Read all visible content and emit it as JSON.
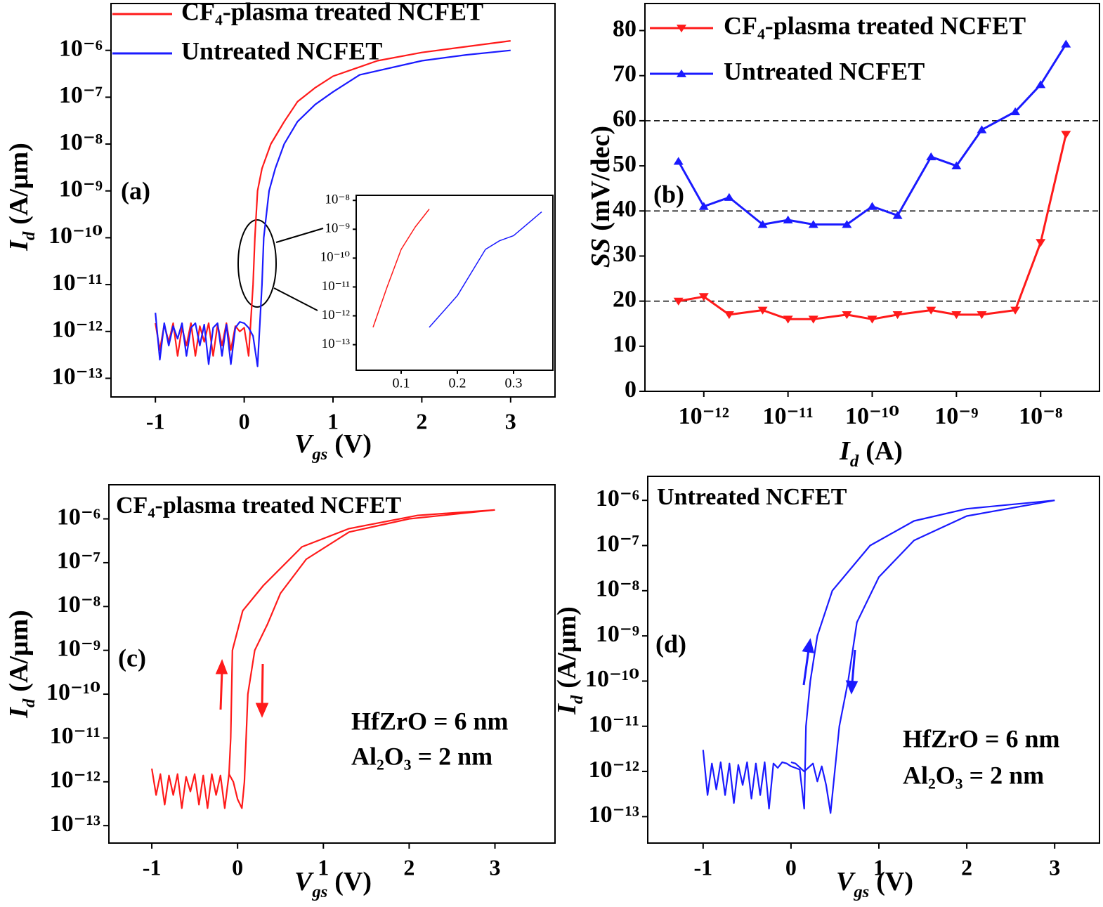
{
  "chart_data": [
    {
      "type": "line",
      "panel_label": "(a)",
      "yscale": "log",
      "legend": true,
      "xlabel": {
        "symbol": "V",
        "subscript": "gs",
        "unit": "(V)"
      },
      "ylabel": {
        "symbol": "I",
        "subscript": "d",
        "unit": "(A/μm)"
      },
      "xlim": [
        -1.5,
        3.5
      ],
      "xticks": [
        -1,
        0,
        1,
        2,
        3
      ],
      "ylim": [
        4e-14,
        1e-05
      ],
      "yticks": [
        {
          "value": 1e-13,
          "label": "10⁻¹³"
        },
        {
          "value": 1e-12,
          "label": "10⁻¹²"
        },
        {
          "value": 1e-11,
          "label": "10⁻¹¹"
        },
        {
          "value": 1e-10,
          "label": "10⁻¹⁰"
        },
        {
          "value": 1e-09,
          "label": "10⁻⁹"
        },
        {
          "value": 1e-08,
          "label": "10⁻⁸"
        },
        {
          "value": 1e-07,
          "label": "10⁻⁷"
        },
        {
          "value": 1e-06,
          "label": "10⁻⁶"
        }
      ],
      "series": [
        {
          "name": "CF₄-plasma treated NCFET",
          "color": "#ff1a1a",
          "x": [
            -1,
            -0.95,
            -0.9,
            -0.85,
            -0.8,
            -0.75,
            -0.7,
            -0.65,
            -0.6,
            -0.55,
            -0.5,
            -0.45,
            -0.4,
            -0.35,
            -0.3,
            -0.25,
            -0.2,
            -0.15,
            -0.1,
            -0.05,
            0,
            0.05,
            0.1,
            0.12,
            0.15,
            0.2,
            0.3,
            0.45,
            0.6,
            0.8,
            1,
            1.5,
            2,
            2.5,
            3
          ],
          "values": [
            1.5e-12,
            4e-13,
            1.4e-12,
            6e-13,
            1.5e-12,
            3e-13,
            1.2e-12,
            5e-13,
            1.5e-12,
            3e-13,
            1.3e-12,
            6e-13,
            1.5e-12,
            3e-13,
            1.4e-12,
            5e-13,
            1.5e-12,
            4e-13,
            1.3e-12,
            1e-12,
            1.2e-12,
            3e-13,
            1e-11,
            1e-10,
            1e-09,
            3e-09,
            1e-08,
            3e-08,
            8e-08,
            1.6e-07,
            2.8e-07,
            6e-07,
            9e-07,
            1.2e-06,
            1.6e-06
          ]
        },
        {
          "name": "Untreated NCFET",
          "color": "#1a1aff",
          "x": [
            -1,
            -0.95,
            -0.9,
            -0.85,
            -0.8,
            -0.75,
            -0.7,
            -0.65,
            -0.6,
            -0.55,
            -0.5,
            -0.45,
            -0.4,
            -0.35,
            -0.3,
            -0.25,
            -0.2,
            -0.15,
            -0.1,
            -0.05,
            0,
            0.05,
            0.1,
            0.15,
            0.2,
            0.22,
            0.28,
            0.35,
            0.45,
            0.6,
            0.8,
            1,
            1.3,
            2,
            2.5,
            3
          ],
          "values": [
            2.5e-12,
            2.5e-13,
            1.5e-12,
            5e-13,
            1.3e-12,
            7e-13,
            1.5e-12,
            3e-13,
            1.2e-12,
            1.5e-12,
            5e-13,
            1.4e-12,
            2e-13,
            1.2e-12,
            1.5e-12,
            3e-13,
            1.4e-12,
            2e-13,
            1.2e-12,
            1.6e-12,
            1.5e-12,
            1.2e-12,
            8e-13,
            1.8e-13,
            1e-11,
            1e-10,
            1e-09,
            3e-09,
            1e-08,
            3e-08,
            7e-08,
            1.3e-07,
            3e-07,
            6e-07,
            8e-07,
            1e-06
          ]
        }
      ]
    },
    {
      "type": "line",
      "yscale": "log",
      "xlim": [
        0.02,
        0.37
      ],
      "xticks": [
        0.1,
        0.2,
        0.3
      ],
      "ylim": [
        1.3e-14,
        1.5e-08
      ],
      "yticks": [
        {
          "value": 1e-13,
          "label": "10⁻¹³"
        },
        {
          "value": 1e-12,
          "label": "10⁻¹²"
        },
        {
          "value": 1e-11,
          "label": "10⁻¹¹"
        },
        {
          "value": 1e-10,
          "label": "10⁻¹⁰"
        },
        {
          "value": 1e-09,
          "label": "10⁻⁹"
        },
        {
          "value": 1e-08,
          "label": "10⁻⁸"
        }
      ],
      "series": [
        {
          "color": "#ff1a1a",
          "x": [
            0.05,
            0.075,
            0.1,
            0.125,
            0.15
          ],
          "values": [
            4e-13,
            1e-11,
            2e-10,
            1.2e-09,
            5e-09
          ]
        },
        {
          "color": "#1a1aff",
          "x": [
            0.15,
            0.2,
            0.25,
            0.275,
            0.3,
            0.35
          ],
          "values": [
            4e-13,
            5e-12,
            2e-10,
            4e-10,
            6e-10,
            4e-09
          ]
        }
      ]
    },
    {
      "type": "line",
      "panel_label": "(b)",
      "xscale": "log",
      "legend": true,
      "xlabel": {
        "symbol": "I",
        "subscript": "d",
        "unit": "(A)"
      },
      "ylabel": {
        "symbol": "SS",
        "unit": "(mV/dec)"
      },
      "xlim": [
        2e-13,
        5e-08
      ],
      "xticks": [
        {
          "value": 1e-12,
          "label": "10⁻¹²"
        },
        {
          "value": 1e-11,
          "label": "10⁻¹¹"
        },
        {
          "value": 1e-10,
          "label": "10⁻¹⁰"
        },
        {
          "value": 1e-09,
          "label": "10⁻⁹"
        },
        {
          "value": 1e-08,
          "label": "10⁻⁸"
        }
      ],
      "ylim": [
        0,
        86
      ],
      "yticks": [
        0,
        10,
        20,
        30,
        40,
        50,
        60,
        70,
        80
      ],
      "reference_lines": [
        20,
        40,
        60
      ],
      "x": [
        5e-13,
        1e-12,
        2e-12,
        5e-12,
        1e-11,
        2e-11,
        5e-11,
        1e-10,
        2e-10,
        5e-10,
        1e-09,
        2e-09,
        5e-09,
        1e-08,
        2e-08
      ],
      "series": [
        {
          "name": "CF₄-plasma treated NCFET",
          "color": "#ff1a1a",
          "marker": "triangle-down",
          "values": [
            20,
            21,
            17,
            18,
            16,
            16,
            17,
            16,
            17,
            18,
            17,
            17,
            18,
            33,
            57
          ]
        },
        {
          "name": "Untreated NCFET",
          "color": "#1a1aff",
          "marker": "triangle-up",
          "values": [
            51,
            41,
            43,
            37,
            38,
            37,
            37,
            41,
            39,
            52,
            50,
            58,
            62,
            68,
            77
          ]
        }
      ]
    },
    {
      "type": "line",
      "panel_label": "(c)",
      "yscale": "log",
      "annotations": [
        "CF₄-plasma treated NCFET",
        "HfZrO = 6 nm",
        "Al₂O₃ = 2 nm"
      ],
      "xlabel": {
        "symbol": "V",
        "subscript": "gs",
        "unit": "(V)"
      },
      "ylabel": {
        "symbol": "I",
        "subscript": "d",
        "unit": "(A/μm)"
      },
      "xlim": [
        -1.5,
        3.7
      ],
      "xticks": [
        -1,
        0,
        1,
        2,
        3
      ],
      "ylim": [
        4e-14,
        6e-06
      ],
      "yticks": [
        {
          "value": 1e-13,
          "label": "10⁻¹³"
        },
        {
          "value": 1e-12,
          "label": "10⁻¹²"
        },
        {
          "value": 1e-11,
          "label": "10⁻¹¹"
        },
        {
          "value": 1e-10,
          "label": "10⁻¹⁰"
        },
        {
          "value": 1e-09,
          "label": "10⁻⁹"
        },
        {
          "value": 1e-08,
          "label": "10⁻⁸"
        },
        {
          "value": 1e-07,
          "label": "10⁻⁷"
        },
        {
          "value": 1e-06,
          "label": "10⁻⁶"
        }
      ],
      "series": [
        {
          "color": "#ff1a1a",
          "x": [
            -1,
            -0.95,
            -0.9,
            -0.85,
            -0.8,
            -0.75,
            -0.7,
            -0.65,
            -0.6,
            -0.55,
            -0.5,
            -0.45,
            -0.4,
            -0.35,
            -0.3,
            -0.25,
            -0.2,
            -0.15,
            -0.1,
            -0.08,
            -0.06,
            0.06,
            0.3,
            0.75,
            1.3,
            2.1,
            3
          ],
          "values": [
            2e-12,
            5e-13,
            1.5e-12,
            3e-13,
            1.4e-12,
            5e-13,
            1.5e-12,
            2.5e-13,
            1.3e-12,
            6e-13,
            1.5e-12,
            3e-13,
            1.4e-12,
            2.5e-13,
            1.5e-12,
            5e-13,
            1.4e-12,
            2.5e-13,
            1.5e-12,
            1e-11,
            1e-09,
            8e-09,
            3e-08,
            2.3e-07,
            6e-07,
            1.2e-06,
            1.6e-06
          ]
        },
        {
          "color": "#ff1a1a",
          "x": [
            3,
            2,
            1.3,
            0.8,
            0.5,
            0.35,
            0.2,
            0.12,
            0.08,
            0.05,
            0,
            -0.05,
            -0.1
          ],
          "values": [
            1.6e-06,
            1e-06,
            5e-07,
            1.2e-07,
            2e-08,
            4e-09,
            1e-09,
            1e-10,
            1e-12,
            2.5e-13,
            4e-13,
            1e-12,
            1.5e-12
          ]
        }
      ]
    },
    {
      "type": "line",
      "panel_label": "(d)",
      "yscale": "log",
      "annotations": [
        "Untreated NCFET",
        "HfZrO = 6 nm",
        "Al₂O₃ = 2 nm"
      ],
      "xlabel": {
        "symbol": "V",
        "subscript": "gs",
        "unit": "(V)"
      },
      "ylabel": {
        "symbol": "I",
        "subscript": "d",
        "unit": "(A/μm)"
      },
      "xlim": [
        -1.63,
        3.51
      ],
      "xticks": [
        -1,
        0,
        1,
        2,
        3
      ],
      "ylim": [
        2.6e-14,
        3.4e-06
      ],
      "yticks": [
        {
          "value": 1e-13,
          "label": "10⁻¹³"
        },
        {
          "value": 1e-12,
          "label": "10⁻¹²"
        },
        {
          "value": 1e-11,
          "label": "10⁻¹¹"
        },
        {
          "value": 1e-10,
          "label": "10⁻¹⁰"
        },
        {
          "value": 1e-09,
          "label": "10⁻⁹"
        },
        {
          "value": 1e-08,
          "label": "10⁻⁸"
        },
        {
          "value": 1e-07,
          "label": "10⁻⁷"
        },
        {
          "value": 1e-06,
          "label": "10⁻⁶"
        }
      ],
      "series": [
        {
          "color": "#1a1aff",
          "x": [
            -1,
            -0.95,
            -0.9,
            -0.85,
            -0.8,
            -0.75,
            -0.7,
            -0.65,
            -0.6,
            -0.55,
            -0.5,
            -0.45,
            -0.4,
            -0.35,
            -0.3,
            -0.25,
            -0.2,
            -0.15,
            -0.1,
            -0.05,
            0,
            0.05,
            0.1,
            0.15,
            0.17,
            0.22,
            0.3,
            0.47,
            0.9,
            1.4,
            2,
            3
          ],
          "values": [
            3e-12,
            3e-13,
            1.5e-12,
            4e-13,
            1.6e-12,
            3e-13,
            1.5e-12,
            2e-13,
            1.4e-12,
            5e-13,
            1.6e-12,
            2.5e-13,
            1.5e-12,
            3e-13,
            1.6e-12,
            1.5e-13,
            1.5e-12,
            1.2e-12,
            1.6e-12,
            1.5e-12,
            1.3e-12,
            1.2e-12,
            1.1e-12,
            1.5e-13,
            1e-11,
            1e-10,
            1e-09,
            1e-08,
            1e-07,
            3.5e-07,
            6.5e-07,
            1e-06
          ]
        },
        {
          "color": "#1a1aff",
          "x": [
            3,
            2,
            1.4,
            1,
            0.75,
            0.65,
            0.55,
            0.45,
            0.4,
            0.35,
            0.3,
            0.25,
            0.15,
            0.05,
            0
          ],
          "values": [
            1e-06,
            4.5e-07,
            1.3e-07,
            2e-08,
            2e-09,
            1e-10,
            1e-11,
            1.2e-13,
            5e-13,
            1.3e-12,
            6e-13,
            1.5e-12,
            1e-12,
            1.5e-12,
            1.6e-12
          ]
        }
      ]
    }
  ]
}
